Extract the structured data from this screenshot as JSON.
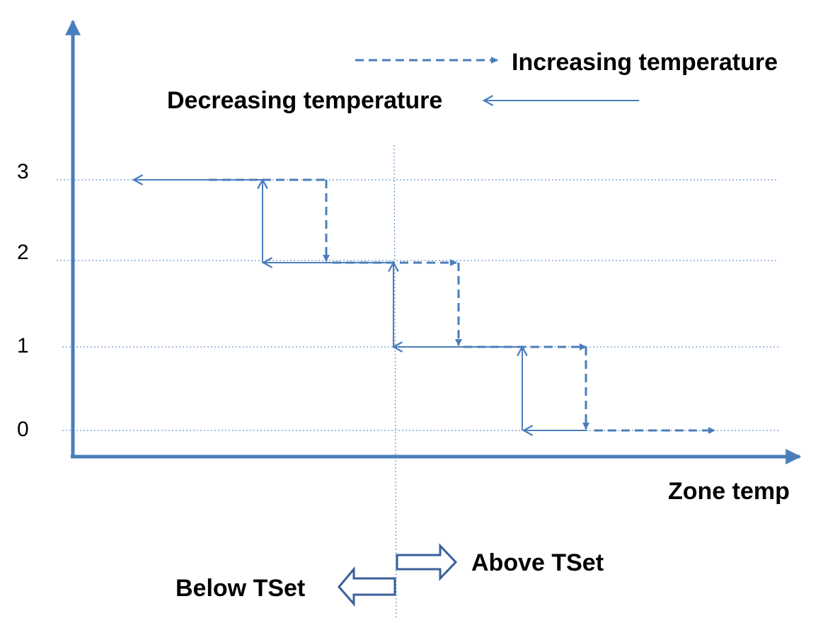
{
  "legend": {
    "increasing_label": "Increasing temperature",
    "decreasing_label": "Decreasing temperature"
  },
  "axis": {
    "x_label": "Zone temp",
    "levels": [
      "3",
      "2",
      "1",
      "0"
    ]
  },
  "setpoint": {
    "above_label": "Above TSet",
    "below_label": "Below TSet"
  },
  "colors": {
    "line": "#4a7ebb",
    "axis": "#4a7ebb",
    "text": "#000000",
    "hollow_arrow": "#3a5f9a"
  }
}
